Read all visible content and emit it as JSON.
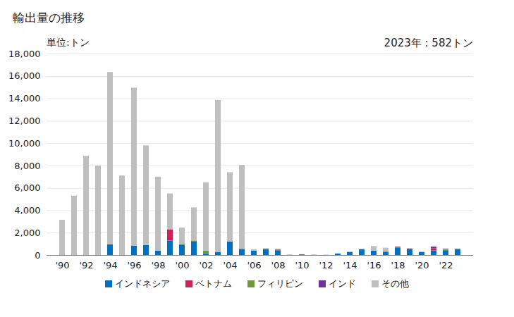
{
  "chart_data": {
    "type": "bar",
    "stacked": true,
    "title": "輸出量の推移",
    "y_label": "単位:トン",
    "annotation": "2023年 : 582トン",
    "grid": true,
    "legend": "bottom",
    "categories": [
      "'90",
      null,
      "'92",
      null,
      "'94",
      null,
      "'96",
      null,
      "'98",
      null,
      "'00",
      null,
      "'02",
      null,
      "'04",
      null,
      "'06",
      null,
      "'08",
      null,
      "'10",
      null,
      "'12",
      null,
      "'14",
      null,
      "'16",
      null,
      "'18",
      null,
      "'20",
      null,
      "'22",
      null
    ],
    "series": [
      {
        "name": "インドネシア",
        "color": "#0070c0",
        "values": [
          0,
          0,
          0,
          0,
          950,
          0,
          850,
          900,
          400,
          1300,
          900,
          1200,
          150,
          250,
          1200,
          550,
          400,
          500,
          400,
          0,
          60,
          0,
          0,
          130,
          280,
          520,
          400,
          300,
          650,
          500,
          280,
          400,
          400,
          500
        ]
      },
      {
        "name": "ベトナム",
        "color": "#d0215a",
        "values": [
          0,
          0,
          0,
          0,
          0,
          0,
          0,
          0,
          0,
          1000,
          0,
          0,
          0,
          0,
          0,
          0,
          0,
          0,
          80,
          0,
          0,
          0,
          0,
          0,
          0,
          0,
          0,
          0,
          80,
          80,
          0,
          200,
          50,
          0
        ]
      },
      {
        "name": "フィリピン",
        "color": "#6f9a3a",
        "values": [
          0,
          0,
          0,
          0,
          0,
          0,
          0,
          0,
          0,
          0,
          100,
          100,
          250,
          0,
          0,
          0,
          0,
          80,
          50,
          0,
          0,
          0,
          0,
          0,
          0,
          0,
          0,
          0,
          0,
          0,
          0,
          0,
          100,
          60
        ]
      },
      {
        "name": "インド",
        "color": "#7030a0",
        "values": [
          0,
          0,
          0,
          0,
          0,
          0,
          0,
          0,
          0,
          0,
          0,
          0,
          0,
          0,
          0,
          0,
          0,
          0,
          0,
          0,
          0,
          0,
          0,
          0,
          0,
          0,
          0,
          0,
          0,
          0,
          0,
          150,
          0,
          0
        ]
      },
      {
        "name": "その他",
        "color": "#bfbfbf",
        "values": [
          3150,
          5300,
          8850,
          8000,
          15400,
          7100,
          14100,
          8900,
          6600,
          3200,
          1450,
          2950,
          6100,
          13600,
          6200,
          7500,
          100,
          20,
          20,
          50,
          20,
          50,
          30,
          20,
          20,
          30,
          400,
          350,
          70,
          20,
          40,
          0,
          50,
          22
        ]
      }
    ],
    "ylim": [
      0,
      18000
    ],
    "yticks": [
      0,
      {
        "value": 2000,
        "label": "2,000"
      },
      {
        "value": 4000,
        "label": "4,000"
      },
      {
        "value": 6000,
        "label": "6,000"
      },
      {
        "value": 8000,
        "label": "8,000"
      },
      {
        "value": 10000,
        "label": "10,000"
      },
      {
        "value": 12000,
        "label": "12,000"
      },
      {
        "value": 14000,
        "label": "14,000"
      },
      {
        "value": 16000,
        "label": "16,000"
      },
      {
        "value": 18000,
        "label": "18,000"
      }
    ]
  }
}
